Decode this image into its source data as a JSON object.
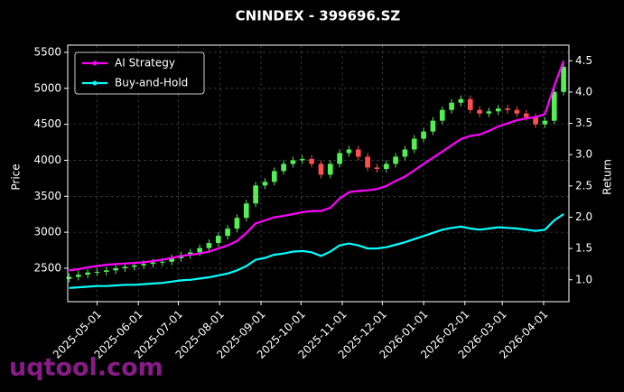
{
  "chart_data": {
    "type": "candlestick",
    "title": "CNINDEX - 399696.SZ",
    "ylabel": "Price",
    "y2label": "Return",
    "watermark": "uqtool.com",
    "up_color": "#55ee55",
    "down_color": "#ff5050",
    "grid": true,
    "legend": "upper left",
    "xlim": [
      "2025-04-09",
      "2026-04-20"
    ],
    "xticks": [
      "2025-05-01",
      "2025-06-01",
      "2025-07-01",
      "2025-08-01",
      "2025-09-01",
      "2025-10-01",
      "2025-11-01",
      "2025-12-01",
      "2026-01-01",
      "2026-02-01",
      "2026-03-01",
      "2026-04-01"
    ],
    "ylim": [
      2035,
      5600
    ],
    "yticks": [
      2500,
      3000,
      3500,
      4000,
      4500,
      5000,
      5500
    ],
    "y2lim": [
      0.65,
      4.75
    ],
    "y2ticks": [
      {
        "value": 1,
        "label": "1.0"
      },
      1.5,
      {
        "value": 2,
        "label": "2.0"
      },
      2.5,
      {
        "value": 3,
        "label": "3.0"
      },
      3.5,
      {
        "value": 4,
        "label": "4.0"
      },
      4.5
    ],
    "x": [
      "2025-04-10",
      "2025-04-17",
      "2025-04-24",
      "2025-05-01",
      "2025-05-08",
      "2025-05-15",
      "2025-05-22",
      "2025-05-29",
      "2025-06-05",
      "2025-06-12",
      "2025-06-19",
      "2025-06-26",
      "2025-07-03",
      "2025-07-10",
      "2025-07-17",
      "2025-07-24",
      "2025-07-31",
      "2025-08-07",
      "2025-08-14",
      "2025-08-21",
      "2025-08-28",
      "2025-09-04",
      "2025-09-11",
      "2025-09-18",
      "2025-09-25",
      "2025-10-02",
      "2025-10-09",
      "2025-10-16",
      "2025-10-23",
      "2025-10-30",
      "2025-11-06",
      "2025-11-13",
      "2025-11-20",
      "2025-11-27",
      "2025-12-04",
      "2025-12-11",
      "2025-12-18",
      "2025-12-25",
      "2026-01-01",
      "2026-01-08",
      "2026-01-15",
      "2026-01-22",
      "2026-01-29",
      "2026-02-05",
      "2026-02-12",
      "2026-02-19",
      "2026-02-26",
      "2026-03-05",
      "2026-03-12",
      "2026-03-19",
      "2026-03-26",
      "2026-04-02",
      "2026-04-09",
      "2026-04-16"
    ],
    "open": [
      2350,
      2380,
      2410,
      2440,
      2450,
      2470,
      2500,
      2520,
      2540,
      2560,
      2580,
      2590,
      2640,
      2680,
      2720,
      2780,
      2850,
      2950,
      3050,
      3200,
      3400,
      3650,
      3700,
      3850,
      3950,
      4000,
      4020,
      3950,
      3800,
      3950,
      4100,
      4150,
      4050,
      3900,
      3880,
      3950,
      4050,
      4150,
      4300,
      4400,
      4550,
      4700,
      4800,
      4850,
      4700,
      4650,
      4680,
      4720,
      4700,
      4650,
      4600,
      4500,
      4550,
      4950
    ],
    "high": [
      2430,
      2460,
      2490,
      2500,
      2520,
      2550,
      2570,
      2590,
      2610,
      2630,
      2640,
      2690,
      2730,
      2770,
      2830,
      2900,
      3000,
      3100,
      3250,
      3450,
      3700,
      3750,
      3900,
      4000,
      4050,
      4070,
      4070,
      4000,
      4000,
      4150,
      4200,
      4200,
      4100,
      3950,
      4000,
      4100,
      4200,
      4350,
      4450,
      4600,
      4750,
      4850,
      4900,
      4900,
      4750,
      4730,
      4770,
      4770,
      4750,
      4700,
      4650,
      4600,
      5000,
      5350
    ],
    "low": [
      2300,
      2330,
      2360,
      2390,
      2400,
      2420,
      2450,
      2470,
      2490,
      2510,
      2530,
      2540,
      2590,
      2630,
      2670,
      2730,
      2800,
      2900,
      3000,
      3150,
      3350,
      3600,
      3650,
      3800,
      3900,
      3950,
      3900,
      3750,
      3750,
      3900,
      4050,
      4000,
      3850,
      3830,
      3830,
      3900,
      4000,
      4100,
      4250,
      4350,
      4500,
      4650,
      4750,
      4650,
      4600,
      4600,
      4630,
      4650,
      4600,
      4550,
      4450,
      4450,
      4500,
      4900
    ],
    "close": [
      2380,
      2410,
      2440,
      2450,
      2470,
      2500,
      2520,
      2540,
      2560,
      2580,
      2590,
      2640,
      2680,
      2720,
      2780,
      2850,
      2950,
      3050,
      3200,
      3400,
      3650,
      3700,
      3850,
      3950,
      4000,
      4020,
      3950,
      3800,
      3950,
      4100,
      4150,
      4050,
      3900,
      3880,
      3950,
      4050,
      4150,
      4300,
      4400,
      4550,
      4700,
      4800,
      4850,
      4700,
      4650,
      4680,
      4720,
      4700,
      4650,
      4600,
      4500,
      4550,
      4950,
      5300
    ],
    "series": [
      {
        "name": "AI Strategy",
        "color": "#ff00ff",
        "axis": "y2",
        "values": [
          1.15,
          1.17,
          1.2,
          1.22,
          1.24,
          1.25,
          1.26,
          1.27,
          1.28,
          1.3,
          1.32,
          1.35,
          1.38,
          1.4,
          1.42,
          1.45,
          1.5,
          1.55,
          1.62,
          1.75,
          1.9,
          1.95,
          2.0,
          2.02,
          2.05,
          2.08,
          2.1,
          2.1,
          2.15,
          2.3,
          2.4,
          2.42,
          2.43,
          2.45,
          2.5,
          2.58,
          2.65,
          2.75,
          2.85,
          2.95,
          3.05,
          3.15,
          3.25,
          3.3,
          3.32,
          3.38,
          3.45,
          3.5,
          3.55,
          3.58,
          3.6,
          3.65,
          4.1,
          4.5
        ]
      },
      {
        "name": "Buy-and-Hold",
        "color": "#00ffff",
        "axis": "y2",
        "values": [
          0.87,
          0.88,
          0.89,
          0.9,
          0.9,
          0.91,
          0.92,
          0.92,
          0.93,
          0.94,
          0.95,
          0.97,
          0.99,
          1.0,
          1.02,
          1.04,
          1.07,
          1.1,
          1.15,
          1.22,
          1.32,
          1.35,
          1.4,
          1.42,
          1.45,
          1.46,
          1.44,
          1.38,
          1.45,
          1.55,
          1.58,
          1.55,
          1.5,
          1.5,
          1.52,
          1.56,
          1.6,
          1.65,
          1.7,
          1.75,
          1.8,
          1.83,
          1.85,
          1.82,
          1.8,
          1.82,
          1.84,
          1.83,
          1.82,
          1.8,
          1.78,
          1.8,
          1.95,
          2.05
        ]
      }
    ]
  }
}
